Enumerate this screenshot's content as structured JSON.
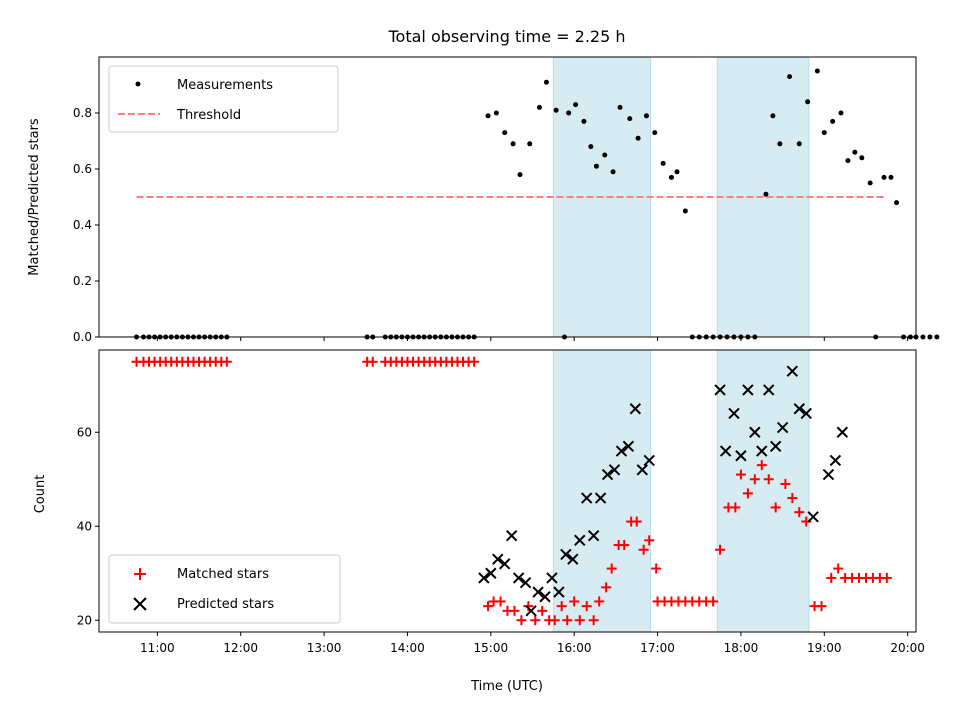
{
  "chart_data": [
    {
      "type": "scatter",
      "title": "Total observing time = 2.25 h",
      "xlabel": "",
      "ylabel": "Matched/Predicted stars",
      "xlim": [
        "10:18",
        "20:06"
      ],
      "ylim": [
        0,
        1.0
      ],
      "yticks": [
        0.0,
        0.2,
        0.4,
        0.6,
        0.8
      ],
      "ytick_labels": [
        "0.0",
        "0.2",
        "0.4",
        "0.6",
        "0.8"
      ],
      "legend": {
        "position": "top-left",
        "entries": [
          "Measurements",
          "Threshold"
        ]
      },
      "shaded_spans": [
        [
          "15:45",
          "16:55"
        ],
        [
          "17:43",
          "18:49"
        ]
      ],
      "threshold": {
        "name": "Threshold",
        "value": 0.5,
        "x_range": [
          "10:45",
          "19:43"
        ],
        "color": "#ff7f7f"
      },
      "series": [
        {
          "name": "Measurements",
          "color": "#000000",
          "points": [
            [
              "10:45",
              0
            ],
            [
              "10:50",
              0
            ],
            [
              "10:54",
              0
            ],
            [
              "10:58",
              0
            ],
            [
              "11:02",
              0
            ],
            [
              "11:06",
              0
            ],
            [
              "11:10",
              0
            ],
            [
              "11:14",
              0
            ],
            [
              "11:18",
              0
            ],
            [
              "11:22",
              0
            ],
            [
              "11:26",
              0
            ],
            [
              "11:30",
              0
            ],
            [
              "11:34",
              0
            ],
            [
              "11:38",
              0
            ],
            [
              "11:42",
              0
            ],
            [
              "11:46",
              0
            ],
            [
              "11:50",
              0
            ],
            [
              "13:31",
              0
            ],
            [
              "13:35",
              0
            ],
            [
              "13:44",
              0
            ],
            [
              "13:48",
              0
            ],
            [
              "13:52",
              0
            ],
            [
              "13:56",
              0
            ],
            [
              "14:00",
              0
            ],
            [
              "14:04",
              0
            ],
            [
              "14:08",
              0
            ],
            [
              "14:12",
              0
            ],
            [
              "14:16",
              0
            ],
            [
              "14:20",
              0
            ],
            [
              "14:24",
              0
            ],
            [
              "14:28",
              0
            ],
            [
              "14:32",
              0
            ],
            [
              "14:36",
              0
            ],
            [
              "14:40",
              0
            ],
            [
              "14:44",
              0
            ],
            [
              "14:48",
              0
            ],
            [
              "14:58",
              0.79
            ],
            [
              "15:04",
              0.8
            ],
            [
              "15:10",
              0.73
            ],
            [
              "15:16",
              0.69
            ],
            [
              "15:21",
              0.58
            ],
            [
              "15:28",
              0.69
            ],
            [
              "15:35",
              0.82
            ],
            [
              "15:40",
              0.91
            ],
            [
              "15:47",
              0.81
            ],
            [
              "15:53",
              0.0
            ],
            [
              "15:56",
              0.8
            ],
            [
              "16:01",
              0.83
            ],
            [
              "16:07",
              0.77
            ],
            [
              "16:12",
              0.68
            ],
            [
              "16:16",
              0.61
            ],
            [
              "16:22",
              0.65
            ],
            [
              "16:28",
              0.59
            ],
            [
              "16:33",
              0.82
            ],
            [
              "16:40",
              0.78
            ],
            [
              "16:46",
              0.71
            ],
            [
              "16:52",
              0.79
            ],
            [
              "16:58",
              0.73
            ],
            [
              "17:04",
              0.62
            ],
            [
              "17:10",
              0.57
            ],
            [
              "17:14",
              0.59
            ],
            [
              "17:20",
              0.45
            ],
            [
              "17:25",
              0
            ],
            [
              "17:30",
              0
            ],
            [
              "17:35",
              0
            ],
            [
              "17:40",
              0
            ],
            [
              "17:45",
              0
            ],
            [
              "17:50",
              0
            ],
            [
              "17:55",
              0
            ],
            [
              "18:00",
              0
            ],
            [
              "18:05",
              0
            ],
            [
              "18:10",
              0
            ],
            [
              "18:18",
              0.51
            ],
            [
              "18:23",
              0.79
            ],
            [
              "18:28",
              0.69
            ],
            [
              "18:35",
              0.93
            ],
            [
              "18:42",
              0.69
            ],
            [
              "18:48",
              0.84
            ],
            [
              "18:55",
              0.95
            ],
            [
              "19:00",
              0.73
            ],
            [
              "19:06",
              0.77
            ],
            [
              "19:12",
              0.8
            ],
            [
              "19:17",
              0.63
            ],
            [
              "19:22",
              0.66
            ],
            [
              "19:27",
              0.64
            ],
            [
              "19:33",
              0.55
            ],
            [
              "19:37",
              0
            ],
            [
              "19:43",
              0.57
            ],
            [
              "19:48",
              0.57
            ],
            [
              "19:52",
              0.48
            ],
            [
              "19:57",
              0
            ],
            [
              "20:02",
              0
            ],
            [
              "20:06",
              0
            ],
            [
              "20:11",
              0
            ],
            [
              "20:16",
              0
            ],
            [
              "20:21",
              0
            ]
          ]
        }
      ]
    },
    {
      "type": "scatter",
      "title": "",
      "xlabel": "Time (UTC)",
      "ylabel": "Count",
      "xlim": [
        "10:18",
        "20:06"
      ],
      "ylim": [
        17.5,
        77.5
      ],
      "yticks": [
        20,
        40,
        60
      ],
      "ytick_labels": [
        "20",
        "40",
        "60"
      ],
      "xticks": [
        "11:00",
        "12:00",
        "13:00",
        "14:00",
        "15:00",
        "16:00",
        "17:00",
        "18:00",
        "19:00",
        "20:00"
      ],
      "xtick_labels": [
        "11:00",
        "12:00",
        "13:00",
        "14:00",
        "15:00",
        "16:00",
        "17:00",
        "18:00",
        "19:00",
        "20:00"
      ],
      "legend": {
        "position": "bottom-left",
        "entries": [
          "Matched stars",
          "Predicted stars"
        ]
      },
      "shaded_spans": [
        [
          "15:45",
          "16:55"
        ],
        [
          "17:43",
          "18:49"
        ]
      ],
      "series": [
        {
          "name": "Matched stars",
          "color": "#ff0000",
          "marker": "plus",
          "points": [
            [
              "10:45",
              75
            ],
            [
              "10:50",
              75
            ],
            [
              "10:54",
              75
            ],
            [
              "10:58",
              75
            ],
            [
              "11:02",
              75
            ],
            [
              "11:06",
              75
            ],
            [
              "11:10",
              75
            ],
            [
              "11:14",
              75
            ],
            [
              "11:18",
              75
            ],
            [
              "11:22",
              75
            ],
            [
              "11:26",
              75
            ],
            [
              "11:30",
              75
            ],
            [
              "11:34",
              75
            ],
            [
              "11:38",
              75
            ],
            [
              "11:42",
              75
            ],
            [
              "11:46",
              75
            ],
            [
              "11:50",
              75
            ],
            [
              "13:31",
              75
            ],
            [
              "13:35",
              75
            ],
            [
              "13:44",
              75
            ],
            [
              "13:48",
              75
            ],
            [
              "13:52",
              75
            ],
            [
              "13:56",
              75
            ],
            [
              "14:00",
              75
            ],
            [
              "14:04",
              75
            ],
            [
              "14:08",
              75
            ],
            [
              "14:12",
              75
            ],
            [
              "14:16",
              75
            ],
            [
              "14:20",
              75
            ],
            [
              "14:24",
              75
            ],
            [
              "14:28",
              75
            ],
            [
              "14:32",
              75
            ],
            [
              "14:36",
              75
            ],
            [
              "14:40",
              75
            ],
            [
              "14:44",
              75
            ],
            [
              "14:48",
              75
            ],
            [
              "14:58",
              23
            ],
            [
              "15:02",
              24
            ],
            [
              "15:07",
              24
            ],
            [
              "15:12",
              22
            ],
            [
              "15:17",
              22
            ],
            [
              "15:22",
              20
            ],
            [
              "15:27",
              23
            ],
            [
              "15:32",
              20
            ],
            [
              "15:37",
              22
            ],
            [
              "15:42",
              20
            ],
            [
              "15:46",
              20
            ],
            [
              "15:51",
              23
            ],
            [
              "15:55",
              20
            ],
            [
              "16:00",
              24
            ],
            [
              "16:04",
              20
            ],
            [
              "16:09",
              23
            ],
            [
              "16:14",
              20
            ],
            [
              "16:18",
              24
            ],
            [
              "16:23",
              27
            ],
            [
              "16:27",
              31
            ],
            [
              "16:32",
              36
            ],
            [
              "16:36",
              36
            ],
            [
              "16:41",
              41
            ],
            [
              "16:45",
              41
            ],
            [
              "16:50",
              35
            ],
            [
              "16:54",
              37
            ],
            [
              "16:59",
              31
            ],
            [
              "17:00",
              24
            ],
            [
              "17:05",
              24
            ],
            [
              "17:10",
              24
            ],
            [
              "17:15",
              24
            ],
            [
              "17:20",
              24
            ],
            [
              "17:25",
              24
            ],
            [
              "17:30",
              24
            ],
            [
              "17:35",
              24
            ],
            [
              "17:40",
              24
            ],
            [
              "17:45",
              35
            ],
            [
              "17:51",
              44
            ],
            [
              "17:56",
              44
            ],
            [
              "18:00",
              51
            ],
            [
              "18:05",
              47
            ],
            [
              "18:10",
              50
            ],
            [
              "18:15",
              53
            ],
            [
              "18:20",
              50
            ],
            [
              "18:25",
              44
            ],
            [
              "18:32",
              49
            ],
            [
              "18:37",
              46
            ],
            [
              "18:42",
              43
            ],
            [
              "18:47",
              41
            ],
            [
              "18:53",
              23
            ],
            [
              "18:58",
              23
            ],
            [
              "19:05",
              29
            ],
            [
              "19:10",
              31
            ],
            [
              "19:15",
              29
            ],
            [
              "19:20",
              29
            ],
            [
              "19:25",
              29
            ],
            [
              "19:30",
              29
            ],
            [
              "19:35",
              29
            ],
            [
              "19:40",
              29
            ],
            [
              "19:45",
              29
            ]
          ]
        },
        {
          "name": "Predicted stars",
          "color": "#000000",
          "marker": "x",
          "points": [
            [
              "14:55",
              29
            ],
            [
              "15:00",
              30
            ],
            [
              "15:05",
              33
            ],
            [
              "15:10",
              32
            ],
            [
              "15:15",
              38
            ],
            [
              "15:20",
              29
            ],
            [
              "15:25",
              28
            ],
            [
              "15:29",
              22
            ],
            [
              "15:34",
              26
            ],
            [
              "15:39",
              25
            ],
            [
              "15:44",
              29
            ],
            [
              "15:49",
              26
            ],
            [
              "15:54",
              34
            ],
            [
              "15:59",
              33
            ],
            [
              "16:04",
              37
            ],
            [
              "16:09",
              46
            ],
            [
              "16:14",
              38
            ],
            [
              "16:19",
              46
            ],
            [
              "16:24",
              51
            ],
            [
              "16:29",
              52
            ],
            [
              "16:34",
              56
            ],
            [
              "16:39",
              57
            ],
            [
              "16:44",
              65
            ],
            [
              "16:49",
              52
            ],
            [
              "16:54",
              54
            ],
            [
              "17:45",
              69
            ],
            [
              "17:49",
              56
            ],
            [
              "17:55",
              64
            ],
            [
              "18:00",
              55
            ],
            [
              "18:05",
              69
            ],
            [
              "18:10",
              60
            ],
            [
              "18:15",
              56
            ],
            [
              "18:20",
              69
            ],
            [
              "18:25",
              57
            ],
            [
              "18:30",
              61
            ],
            [
              "18:37",
              73
            ],
            [
              "18:42",
              65
            ],
            [
              "18:47",
              64
            ],
            [
              "18:52",
              42
            ],
            [
              "19:03",
              51
            ],
            [
              "19:08",
              54
            ],
            [
              "19:13",
              60
            ]
          ]
        }
      ]
    }
  ]
}
